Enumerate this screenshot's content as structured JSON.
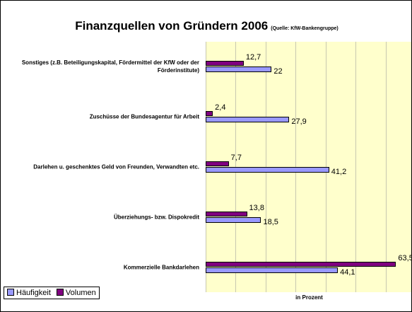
{
  "chart_data": {
    "type": "hbar",
    "title": "Finanzquellen von Gründern 2006",
    "subtitle": "(Quelle: KfW-Bankengruppe)",
    "x_label": "in Prozent",
    "categories": [
      "Sonstiges (z.B. Beteiligungskapital, Fördermittel der KfW oder der Förderinstitute)",
      "Zuschüsse der Bundesagentur für Arbeit",
      "Darlehen u. geschenktes Geld von Freunden, Verwandten etc.",
      "Überziehungs- bzw. Dispokredit",
      "Kommerzielle Bankdarlehen"
    ],
    "series": [
      {
        "name": "Volumen",
        "color": "#800080",
        "values": [
          12.7,
          2.4,
          7.7,
          13.8,
          63.5
        ],
        "value_labels": [
          "12,7",
          "2,4",
          "7,7",
          "13,8",
          "63,5"
        ]
      },
      {
        "name": "Häufigkeit",
        "color": "#9999ff",
        "values": [
          22,
          27.9,
          41.2,
          18.5,
          44.1
        ],
        "value_labels": [
          "22",
          "27,9",
          "41,2",
          "18,5",
          "44,1"
        ]
      }
    ],
    "legend_order": [
      1,
      0
    ],
    "xlim": [
      0,
      70
    ],
    "xticks": [
      0,
      10,
      20,
      30,
      40,
      50,
      60,
      70
    ],
    "grid": true,
    "legend": "bottom-left"
  }
}
